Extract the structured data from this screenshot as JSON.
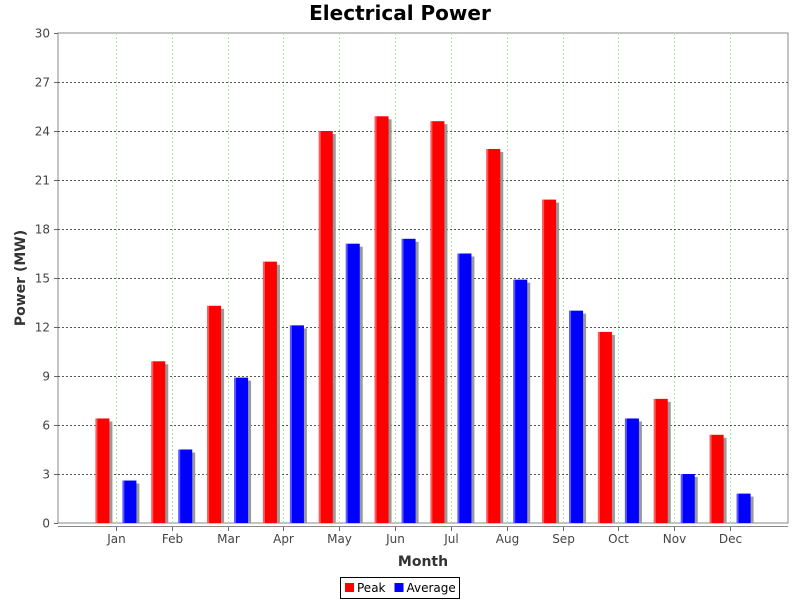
{
  "chart_data": {
    "type": "bar",
    "title": "Electrical Power",
    "xlabel": "Month",
    "ylabel": "Power (MW)",
    "categories": [
      "Jan",
      "Feb",
      "Mar",
      "Apr",
      "May",
      "Jun",
      "Jul",
      "Aug",
      "Sep",
      "Oct",
      "Nov",
      "Dec"
    ],
    "series": [
      {
        "name": "Peak",
        "color": "#ff0000",
        "values": [
          6.4,
          9.9,
          13.3,
          16.0,
          24.0,
          24.9,
          24.6,
          22.9,
          19.8,
          11.7,
          7.6,
          5.4
        ]
      },
      {
        "name": "Average",
        "color": "#0000ff",
        "values": [
          2.6,
          4.5,
          8.9,
          12.1,
          17.1,
          17.4,
          16.5,
          14.9,
          13.0,
          6.4,
          3.0,
          1.8
        ]
      }
    ],
    "ylim": [
      0,
      30
    ],
    "yticks": [
      0,
      3,
      6,
      9,
      12,
      15,
      18,
      21,
      24,
      27,
      30
    ],
    "grid": true,
    "legend_position": "bottom-center"
  }
}
